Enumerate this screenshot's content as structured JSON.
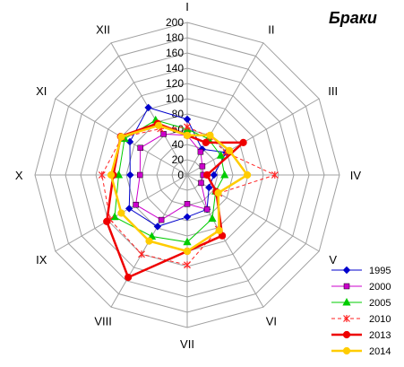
{
  "chart_data": {
    "type": "radar",
    "title": "Браки",
    "categories": [
      "I",
      "II",
      "III",
      "IV",
      "V",
      "VI",
      "VII",
      "VIII",
      "IX",
      "X",
      "XI",
      "XII"
    ],
    "rlim": [
      0,
      200
    ],
    "rticks": [
      0,
      20,
      40,
      60,
      80,
      100,
      120,
      140,
      160,
      180,
      200
    ],
    "grid": true,
    "legend": "bottom-right",
    "series": [
      {
        "name": "1995",
        "color": "#0000cc",
        "marker": "diamond",
        "dash": false,
        "width": 1,
        "values": [
          73,
          39,
          59,
          35,
          33,
          52,
          55,
          78,
          88,
          75,
          87,
          102
        ]
      },
      {
        "name": "2000",
        "color": "#cc00cc",
        "marker": "square",
        "dash": false,
        "width": 1,
        "values": [
          52,
          35,
          23,
          21,
          21,
          52,
          38,
          68,
          78,
          62,
          71,
          62
        ]
      },
      {
        "name": "2005",
        "color": "#00cc00",
        "marker": "triangle",
        "dash": false,
        "width": 1,
        "values": [
          60,
          55,
          51,
          49,
          43,
          66,
          88,
          93,
          110,
          90,
          95,
          83
        ]
      },
      {
        "name": "2010",
        "color": "#ff2222",
        "marker": "x",
        "dash": true,
        "width": 1,
        "values": [
          63,
          58,
          59,
          115,
          48,
          82,
          118,
          120,
          117,
          112,
          99,
          70
        ]
      },
      {
        "name": "2013",
        "color": "#ee0000",
        "marker": "circle",
        "dash": false,
        "width": 2.5,
        "values": [
          52,
          49,
          85,
          26,
          44,
          92,
          100,
          155,
          122,
          97,
          101,
          78
        ]
      },
      {
        "name": "2014",
        "color": "#ffcc00",
        "marker": "circle",
        "dash": false,
        "width": 2.5,
        "values": [
          52,
          60,
          64,
          79,
          47,
          84,
          100,
          100,
          100,
          100,
          100,
          75
        ]
      }
    ]
  }
}
